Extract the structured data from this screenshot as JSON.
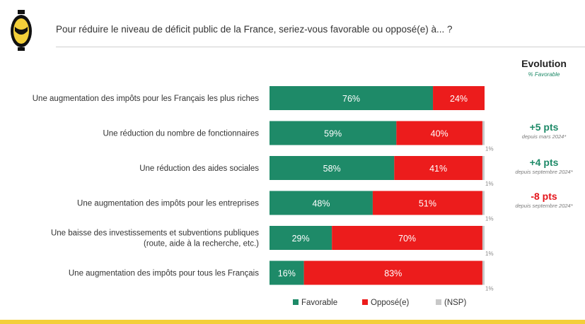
{
  "question": "Pour réduire le niveau de déficit public de la France, seriez-vous favorable ou opposé(e) à... ?",
  "evolution": {
    "title": "Evolution",
    "subtitle": "% Favorable",
    "items": [
      {
        "value": "+5 pts",
        "note": "depuis mars 2024*",
        "color": "#1e8a68"
      },
      {
        "value": "+4 pts",
        "note": "depuis septembre 2024*",
        "color": "#1e8a68"
      },
      {
        "value": "-8 pts",
        "note": "depuis septembre 2024*",
        "color": "#e4141b"
      }
    ]
  },
  "colors": {
    "favorable": "#1e8a68",
    "oppose": "#ec1c1c",
    "nsp": "#c8c8c8",
    "logo": "#f3cf3a"
  },
  "chart_data": {
    "type": "bar",
    "orientation": "horizontal",
    "stacked": true,
    "unit": "%",
    "categories": [
      [
        "Une augmentation des impôts pour les Français les plus riches"
      ],
      [
        "Une réduction du nombre de fonctionnaires"
      ],
      [
        "Une réduction des aides sociales"
      ],
      [
        "Une augmentation des impôts pour les entreprises"
      ],
      [
        "Une baisse des investissements et subventions publiques",
        "(route, aide à la recherche, etc.)"
      ],
      [
        "Une augmentation des impôts pour tous les Français"
      ]
    ],
    "series": [
      {
        "name": "Favorable",
        "values": [
          76,
          59,
          58,
          48,
          29,
          16
        ]
      },
      {
        "name": "Opposé(e)",
        "values": [
          24,
          40,
          41,
          51,
          70,
          83
        ]
      },
      {
        "name": "(NSP)",
        "values": [
          0,
          1,
          1,
          1,
          1,
          1
        ]
      }
    ],
    "labels": [
      [
        "76%",
        "59%",
        "58%",
        "48%",
        "29%",
        "16%"
      ],
      [
        "24%",
        "40%",
        "41%",
        "51%",
        "70%",
        "83%"
      ],
      [
        "",
        "1%",
        "1%",
        "1%",
        "1%",
        "1%"
      ]
    ],
    "legend": "bottom"
  }
}
